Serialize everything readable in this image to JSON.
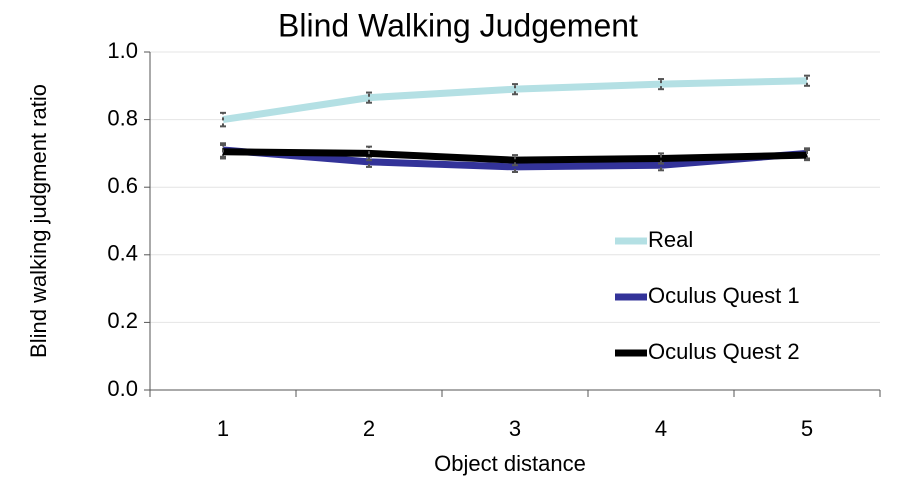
{
  "chart_data": {
    "type": "line",
    "title": "Blind Walking Judgement",
    "x_label": "Object distance",
    "y_label": "Blind walking judgment ratio",
    "categories": [
      "1",
      "2",
      "3",
      "4",
      "5"
    ],
    "series": [
      {
        "name": "Real",
        "color": "#b4e0e4",
        "values": [
          0.8,
          0.865,
          0.89,
          0.905,
          0.915
        ],
        "errors": [
          0.02,
          0.015,
          0.015,
          0.015,
          0.015
        ]
      },
      {
        "name": "Oculus Quest 1",
        "color": "#333399",
        "values": [
          0.71,
          0.675,
          0.66,
          0.665,
          0.7
        ],
        "errors": [
          0.02,
          0.015,
          0.015,
          0.015,
          0.015
        ]
      },
      {
        "name": "Oculus Quest 2",
        "color": "#000000",
        "values": [
          0.705,
          0.7,
          0.68,
          0.685,
          0.695
        ],
        "errors": [
          0.02,
          0.02,
          0.015,
          0.015,
          0.015
        ]
      }
    ],
    "ylim": [
      0,
      1
    ],
    "yticks": [
      {
        "value": 0,
        "label": "0.0"
      },
      0.2,
      0.4,
      0.6,
      0.8,
      {
        "value": 1,
        "label": "1.0"
      }
    ],
    "grid": true,
    "legend": "right"
  }
}
